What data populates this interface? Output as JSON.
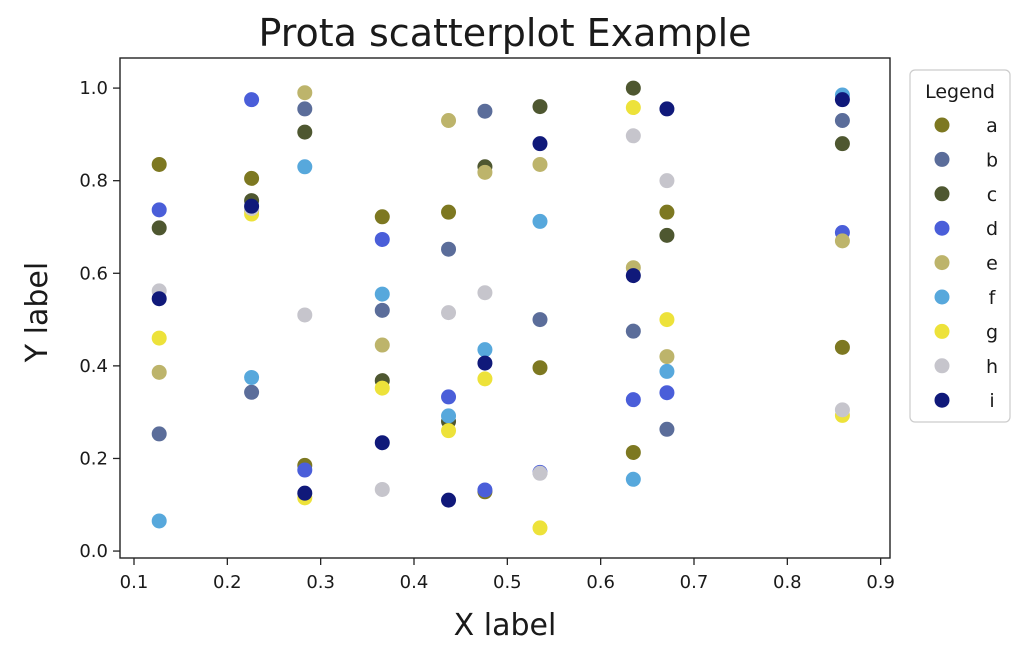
{
  "chart_data": {
    "type": "scatter",
    "title": "Prota scatterplot Example",
    "xlabel": "X label",
    "ylabel": "Y label",
    "xlim": [
      0.085,
      0.91
    ],
    "ylim": [
      -0.015,
      1.065
    ],
    "xticks": [
      {
        "value": 0.1,
        "label": "0.1"
      },
      {
        "value": 0.2,
        "label": "0.2"
      },
      {
        "value": 0.3,
        "label": "0.3"
      },
      {
        "value": 0.4,
        "label": "0.4"
      },
      {
        "value": 0.5,
        "label": "0.5"
      },
      {
        "value": 0.6,
        "label": "0.6"
      },
      {
        "value": 0.7,
        "label": "0.7"
      },
      {
        "value": 0.8,
        "label": "0.8"
      },
      {
        "value": 0.9,
        "label": "0.9"
      }
    ],
    "yticks": [
      {
        "value": 0.0,
        "label": "0.0"
      },
      {
        "value": 0.2,
        "label": "0.2"
      },
      {
        "value": 0.4,
        "label": "0.4"
      },
      {
        "value": 0.6,
        "label": "0.6"
      },
      {
        "value": 0.8,
        "label": "0.8"
      },
      {
        "value": 1.0,
        "label": "1.0"
      }
    ],
    "grid": false,
    "legend": {
      "title": "Legend",
      "placement": "outside-upper-right"
    },
    "x": [
      0.127,
      0.226,
      0.283,
      0.366,
      0.437,
      0.476,
      0.535,
      0.635,
      0.671,
      0.859
    ],
    "series": [
      {
        "name": "a",
        "color": "#7d7821",
        "y": [
          0.835,
          0.805,
          0.185,
          0.722,
          0.732,
          0.128,
          0.396,
          0.213,
          0.732,
          0.44
        ]
      },
      {
        "name": "b",
        "color": "#5b6d9a",
        "y": [
          0.253,
          0.343,
          0.955,
          0.52,
          0.652,
          0.95,
          0.5,
          0.475,
          0.263,
          0.93
        ]
      },
      {
        "name": "c",
        "color": "#4e5730",
        "y": [
          0.698,
          0.757,
          0.905,
          0.368,
          0.28,
          0.83,
          0.96,
          1.0,
          0.682,
          0.88
        ]
      },
      {
        "name": "d",
        "color": "#4a5ed9",
        "y": [
          0.737,
          0.975,
          0.175,
          0.673,
          0.333,
          0.132,
          0.17,
          0.327,
          0.342,
          0.688
        ]
      },
      {
        "name": "e",
        "color": "#bdb46b",
        "y": [
          0.386,
          0.735,
          0.99,
          0.445,
          0.93,
          0.818,
          0.835,
          0.612,
          0.42,
          0.67
        ]
      },
      {
        "name": "f",
        "color": "#57a8dc",
        "y": [
          0.065,
          0.375,
          0.83,
          0.555,
          0.292,
          0.435,
          0.712,
          0.155,
          0.388,
          0.985
        ]
      },
      {
        "name": "g",
        "color": "#ede23a",
        "y": [
          0.46,
          0.728,
          0.115,
          0.352,
          0.26,
          0.372,
          0.05,
          0.958,
          0.5,
          0.293
        ]
      },
      {
        "name": "h",
        "color": "#c6c5cc",
        "y": [
          0.562,
          0.74,
          0.51,
          0.133,
          0.515,
          0.558,
          0.168,
          0.897,
          0.8,
          0.305
        ]
      },
      {
        "name": "i",
        "color": "#10197a",
        "y": [
          0.545,
          0.745,
          0.125,
          0.234,
          0.11,
          0.406,
          0.88,
          0.595,
          0.955,
          0.975
        ]
      }
    ]
  }
}
